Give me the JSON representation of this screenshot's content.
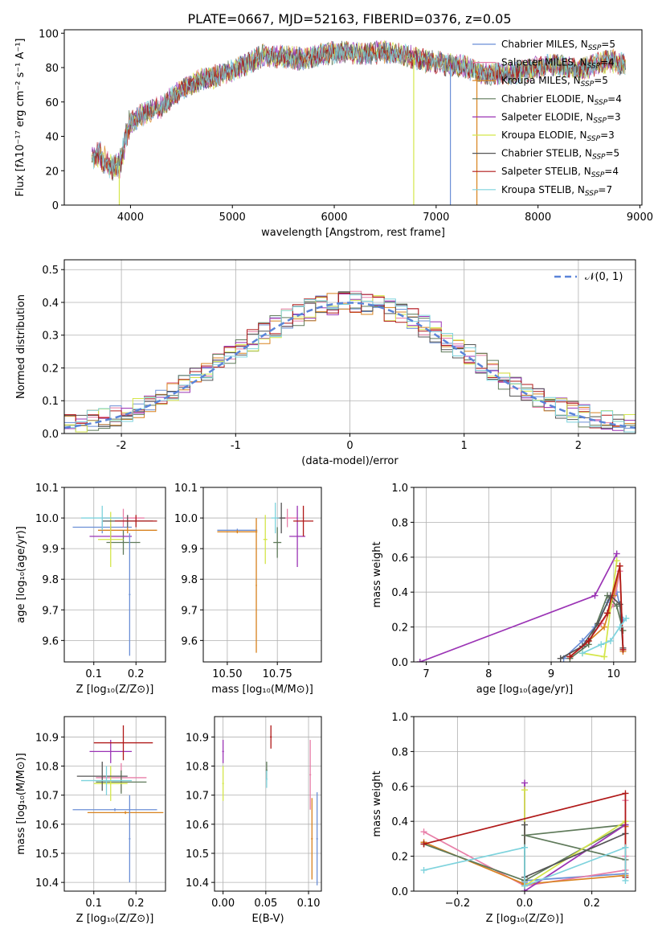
{
  "title": "PLATE=0667, MJD=52163, FIBERID=0376, z=0.05",
  "colors": {
    "Chabrier MILES": "#6b8fd6",
    "Salpeter MILES": "#e87fa8",
    "Kroupa MILES": "#d8821e",
    "Chabrier ELODIE": "#5f7a5a",
    "Salpeter ELODIE": "#9b34b5",
    "Kroupa ELODIE": "#d4e64a",
    "Chabrier STELIB": "#555555",
    "Salpeter STELIB": "#b01818",
    "Kroupa STELIB": "#7ed3dd",
    "normal": "#5b84d8"
  },
  "chart_data": [
    {
      "type": "line",
      "panel": "spectrum",
      "xlabel": "wavelength [Angstrom, rest frame]",
      "ylabel": "Flux [fλ10⁻¹⁷ erg cm⁻² s⁻¹ A⁻¹]",
      "xlim": [
        3350,
        9020
      ],
      "ylim": [
        0,
        102
      ],
      "xticks": [
        "4000",
        "5000",
        "6000",
        "7000",
        "8000",
        "9000"
      ],
      "yticks": [
        "0",
        "20",
        "40",
        "60",
        "80",
        "100"
      ],
      "grid": false,
      "legend_position": "top-right",
      "legend": [
        {
          "model": "Chabrier MILES",
          "label": "Chabrier MILES, N",
          "sub": "SSP",
          "rest": "=5"
        },
        {
          "model": "Salpeter MILES",
          "label": "Salpeter MILES, N",
          "sub": "SSP",
          "rest": "=4"
        },
        {
          "model": "Kroupa MILES",
          "label": "Kroupa MILES, N",
          "sub": "SSP",
          "rest": "=5"
        },
        {
          "model": "Chabrier ELODIE",
          "label": "Chabrier ELODIE, N",
          "sub": "SSP",
          "rest": "=4"
        },
        {
          "model": "Salpeter ELODIE",
          "label": "Salpeter ELODIE, N",
          "sub": "SSP",
          "rest": "=3"
        },
        {
          "model": "Kroupa ELODIE",
          "label": "Kroupa ELODIE, N",
          "sub": "SSP",
          "rest": "=3"
        },
        {
          "model": "Chabrier STELIB",
          "label": "Chabrier STELIB, N",
          "sub": "SSP",
          "rest": "=5"
        },
        {
          "model": "Salpeter STELIB",
          "label": "Salpeter STELIB, N",
          "sub": "SSP",
          "rest": "=4"
        },
        {
          "model": "Kroupa STELIB",
          "label": "Kroupa STELIB, N",
          "sub": "SSP",
          "rest": "=7"
        }
      ],
      "continuum": {
        "wavelength": [
          3600,
          3700,
          3800,
          3900,
          3950,
          4000,
          4100,
          4200,
          4300,
          4400,
          4500,
          4700,
          4900,
          5100,
          5300,
          5500,
          5700,
          5900,
          6100,
          6300,
          6500,
          6700,
          6900,
          7100,
          7300,
          7500,
          7800,
          8100,
          8400,
          8700,
          8850
        ],
        "flux": [
          27,
          29,
          22,
          23,
          40,
          48,
          52,
          55,
          57,
          62,
          67,
          73,
          76,
          81,
          87,
          86,
          85,
          88,
          89,
          88,
          89,
          87,
          84,
          82,
          80,
          76,
          77,
          82,
          79,
          84,
          82
        ]
      },
      "drops": [
        {
          "model": "Kroupa ELODIE",
          "from": 6780,
          "to": 6790
        },
        {
          "model": "Kroupa ELODIE",
          "from": 3890,
          "to": 3895
        },
        {
          "model": "Kroupa MILES",
          "from": 7400,
          "to": 7410
        },
        {
          "model": "Chabrier MILES",
          "from": 7140,
          "to": 7150
        }
      ]
    },
    {
      "type": "line",
      "panel": "residuals",
      "xlabel": "(data-model)/error",
      "ylabel": "Normed distribution",
      "xlim": [
        -2.5,
        2.5
      ],
      "ylim": [
        0,
        0.53
      ],
      "xticks": [
        "-2",
        "-1",
        "0",
        "1",
        "2"
      ],
      "yticks": [
        "0.0",
        "0.1",
        "0.2",
        "0.3",
        "0.4",
        "0.5"
      ],
      "grid": true,
      "legend_position": "top-right",
      "normal_label": "𝒩(0, 1)",
      "bin_edges_range": [
        -2.5,
        2.5
      ],
      "bin_width": 0.1
    },
    {
      "type": "scatter",
      "panel": "age_vs_Z",
      "xlabel": "Z [log₁₀(Z/Z⊙)]",
      "ylabel": "age  [log₁₀(age/yr)]",
      "xlim": [
        0.03,
        0.27
      ],
      "ylim": [
        9.53,
        10.1
      ],
      "xticks": [
        "0.1",
        "0.2"
      ],
      "yticks": [
        "9.6",
        "9.7",
        "9.8",
        "9.9",
        "10.0",
        "10.1"
      ],
      "grid": true,
      "points": [
        {
          "model": "Chabrier MILES",
          "x": 0.12,
          "xerr": 0.07,
          "y": 9.97,
          "yerr": 0.02
        },
        {
          "model": "Salpeter MILES",
          "x": 0.17,
          "xerr": 0.05,
          "y": 10.0,
          "yerr": 0.03
        },
        {
          "model": "Kroupa MILES",
          "x": 0.18,
          "xerr": 0.07,
          "y": 9.96,
          "yerr": 0.01
        },
        {
          "model": "Chabrier ELODIE",
          "x": 0.17,
          "xerr": 0.04,
          "y": 9.92,
          "yerr": 0.04
        },
        {
          "model": "Salpeter ELODIE",
          "x": 0.14,
          "xerr": 0.05,
          "y": 9.94,
          "yerr": 0.04
        },
        {
          "model": "Kroupa ELODIE",
          "x": 0.14,
          "xerr": 0.03,
          "y": 9.93,
          "yerr": 0.09
        },
        {
          "model": "Chabrier STELIB",
          "x": 0.18,
          "xerr": 0.06,
          "y": 9.99,
          "yerr": 0.02
        },
        {
          "model": "Salpeter STELIB",
          "x": 0.2,
          "xerr": 0.05,
          "y": 9.99,
          "yerr": 0.02
        },
        {
          "model": "Kroupa STELIB",
          "x": 0.12,
          "xerr": 0.05,
          "y": 10.0,
          "yerr": 0.04
        },
        {
          "model": "Chabrier MILES",
          "x": 0.185,
          "xerr": 0.002,
          "y": 9.75,
          "yerr": 0.2
        }
      ]
    },
    {
      "type": "scatter",
      "panel": "age_vs_mass",
      "xlabel": "mass [log₁₀(M/M⊙)]",
      "ylabel": "",
      "xlim": [
        10.38,
        10.97
      ],
      "ylim": [
        9.53,
        10.1
      ],
      "xticks": [
        "10.50",
        "10.75"
      ],
      "yticks": [
        "9.6",
        "9.7",
        "9.8",
        "9.9",
        "10.0",
        "10.1"
      ],
      "grid": true,
      "points": [
        {
          "model": "Chabrier MILES",
          "x": 10.55,
          "xerr": 0.1,
          "y": 9.96,
          "yerr": 0.005
        },
        {
          "model": "Kroupa MILES",
          "x": 10.55,
          "xerr": 0.1,
          "y": 9.955,
          "yerr": 0.005
        },
        {
          "model": "Salpeter MILES",
          "x": 10.8,
          "xerr": 0.05,
          "y": 10.0,
          "yerr": 0.03
        },
        {
          "model": "Chabrier ELODIE",
          "x": 10.75,
          "xerr": 0.02,
          "y": 9.92,
          "yerr": 0.05
        },
        {
          "model": "Salpeter ELODIE",
          "x": 10.85,
          "xerr": 0.04,
          "y": 9.94,
          "yerr": 0.1
        },
        {
          "model": "Kroupa ELODIE",
          "x": 10.69,
          "xerr": 0.01,
          "y": 9.93,
          "yerr": 0.08
        },
        {
          "model": "Chabrier STELIB",
          "x": 10.77,
          "xerr": 0.02,
          "y": 10.0,
          "yerr": 0.05
        },
        {
          "model": "Salpeter STELIB",
          "x": 10.88,
          "xerr": 0.05,
          "y": 9.99,
          "yerr": 0.05
        },
        {
          "model": "Kroupa STELIB",
          "x": 10.74,
          "xerr": 0.02,
          "y": 10.0,
          "yerr": 0.05
        },
        {
          "model": "Kroupa MILES",
          "x": 10.645,
          "xerr": 0.003,
          "y": 9.78,
          "yerr": 0.22
        }
      ]
    },
    {
      "type": "line",
      "panel": "massweight_vs_age",
      "xlabel": "age  [log₁₀(age/yr)]",
      "ylabel": "mass weight",
      "xlim": [
        6.8,
        10.35
      ],
      "ylim": [
        0,
        1.0
      ],
      "xticks": [
        "7",
        "8",
        "9",
        "10"
      ],
      "yticks": [
        "0.0",
        "0.2",
        "0.4",
        "0.6",
        "0.8",
        "1.0"
      ],
      "grid": true,
      "series": [
        {
          "model": "Chabrier MILES",
          "x": [
            9.2,
            9.5,
            9.7,
            9.9,
            10.05,
            10.15
          ],
          "y": [
            0.02,
            0.12,
            0.2,
            0.34,
            0.4,
            0.24
          ]
        },
        {
          "model": "Salpeter MILES",
          "x": [
            9.3,
            9.55,
            9.8,
            10.0,
            10.1,
            10.15
          ],
          "y": [
            0.03,
            0.1,
            0.22,
            0.33,
            0.52,
            0.08
          ]
        },
        {
          "model": "Kroupa MILES",
          "x": [
            9.3,
            9.6,
            9.85,
            10.0,
            10.1,
            10.15
          ],
          "y": [
            0.03,
            0.12,
            0.2,
            0.38,
            0.55,
            0.06
          ]
        },
        {
          "model": "Chabrier ELODIE",
          "x": [
            9.3,
            9.6,
            9.9,
            10.05,
            10.15
          ],
          "y": [
            0.02,
            0.1,
            0.38,
            0.32,
            0.18
          ]
        },
        {
          "model": "Salpeter ELODIE",
          "x": [
            6.9,
            9.7,
            10.05
          ],
          "y": [
            0.0,
            0.38,
            0.62
          ]
        },
        {
          "model": "Kroupa ELODIE",
          "x": [
            9.5,
            9.85,
            10.05
          ],
          "y": [
            0.05,
            0.03,
            0.58
          ]
        },
        {
          "model": "Chabrier STELIB",
          "x": [
            9.15,
            9.5,
            9.75,
            9.95,
            10.1,
            10.15
          ],
          "y": [
            0.02,
            0.09,
            0.22,
            0.38,
            0.33,
            0.08
          ]
        },
        {
          "model": "Salpeter STELIB",
          "x": [
            9.3,
            9.6,
            9.9,
            10.1,
            10.15
          ],
          "y": [
            0.03,
            0.12,
            0.28,
            0.55,
            0.07
          ]
        },
        {
          "model": "Kroupa STELIB",
          "x": [
            9.5,
            9.8,
            9.95,
            10.1,
            10.2
          ],
          "y": [
            0.05,
            0.1,
            0.12,
            0.2,
            0.25
          ]
        }
      ]
    },
    {
      "type": "scatter",
      "panel": "mass_vs_Z",
      "xlabel": "Z [log₁₀(Z/Z⊙)]",
      "ylabel": "mass [log₁₀(M/M⊙)]",
      "xlim": [
        0.03,
        0.27
      ],
      "ylim": [
        10.37,
        10.97
      ],
      "xticks": [
        "0.1",
        "0.2"
      ],
      "yticks": [
        "10.4",
        "10.5",
        "10.6",
        "10.7",
        "10.8",
        "10.9"
      ],
      "grid": true,
      "points": [
        {
          "model": "Chabrier MILES",
          "x": 0.15,
          "xerr": 0.1,
          "y": 10.65,
          "yerr": 0.005
        },
        {
          "model": "Kroupa MILES",
          "x": 0.175,
          "xerr": 0.09,
          "y": 10.64,
          "yerr": 0.005
        },
        {
          "model": "Salpeter MILES",
          "x": 0.165,
          "xerr": 0.06,
          "y": 10.76,
          "yerr": 0.05
        },
        {
          "model": "Chabrier ELODIE",
          "x": 0.165,
          "xerr": 0.06,
          "y": 10.745,
          "yerr": 0.04
        },
        {
          "model": "Salpeter ELODIE",
          "x": 0.14,
          "xerr": 0.05,
          "y": 10.85,
          "yerr": 0.04
        },
        {
          "model": "Kroupa ELODIE",
          "x": 0.14,
          "xerr": 0.04,
          "y": 10.74,
          "yerr": 0.06
        },
        {
          "model": "Chabrier STELIB",
          "x": 0.12,
          "xerr": 0.06,
          "y": 10.765,
          "yerr": 0.05
        },
        {
          "model": "Salpeter STELIB",
          "x": 0.17,
          "xerr": 0.07,
          "y": 10.88,
          "yerr": 0.06
        },
        {
          "model": "Kroupa STELIB",
          "x": 0.13,
          "xerr": 0.06,
          "y": 10.75,
          "yerr": 0.05
        },
        {
          "model": "Chabrier MILES",
          "x": 0.185,
          "xerr": 0.002,
          "y": 10.55,
          "yerr": 0.15
        }
      ]
    },
    {
      "type": "scatter",
      "panel": "mass_vs_EBV",
      "xlabel": "E(B-V)",
      "ylabel": "",
      "xlim": [
        -0.01,
        0.115
      ],
      "ylim": [
        10.37,
        10.97
      ],
      "xticks": [
        "0.00",
        "0.05",
        "0.10"
      ],
      "yticks": [
        "10.4",
        "10.5",
        "10.6",
        "10.7",
        "10.8",
        "10.9"
      ],
      "grid": true,
      "points": [
        {
          "model": "Salpeter ELODIE",
          "x": 0.0,
          "xerr": 0.001,
          "y": 10.85,
          "yerr": 0.04
        },
        {
          "model": "Kroupa ELODIE",
          "x": 0.0,
          "xerr": 0.001,
          "y": 10.74,
          "yerr": 0.06
        },
        {
          "model": "Chabrier ELODIE",
          "x": 0.051,
          "xerr": 0.001,
          "y": 10.785,
          "yerr": 0.03
        },
        {
          "model": "Kroupa STELIB",
          "x": 0.051,
          "xerr": 0.001,
          "y": 10.755,
          "yerr": 0.03
        },
        {
          "model": "Salpeter STELIB",
          "x": 0.056,
          "xerr": 0.001,
          "y": 10.9,
          "yerr": 0.04
        },
        {
          "model": "Salpeter MILES",
          "x": 0.102,
          "xerr": 0.001,
          "y": 10.77,
          "yerr": 0.12
        },
        {
          "model": "Kroupa MILES",
          "x": 0.104,
          "xerr": 0.001,
          "y": 10.55,
          "yerr": 0.14
        },
        {
          "model": "Chabrier MILES",
          "x": 0.11,
          "xerr": 0.001,
          "y": 10.55,
          "yerr": 0.16
        }
      ]
    },
    {
      "type": "line",
      "panel": "massweight_vs_Z",
      "xlabel": "Z [log₁₀(Z/Z⊙)]",
      "ylabel": "mass weight",
      "xlim": [
        -0.33,
        0.33
      ],
      "ylim": [
        0,
        1.0
      ],
      "xticks": [
        "−0.2",
        "0.0",
        "0.2"
      ],
      "yticks": [
        "0.0",
        "0.2",
        "0.4",
        "0.6",
        "0.8",
        "1.0"
      ],
      "grid": true,
      "series": [
        {
          "model": "Chabrier MILES",
          "x": [
            0.0,
            0.0,
            0.3,
            0.3
          ],
          "y": [
            0.05,
            0.06,
            0.1,
            0.38
          ]
        },
        {
          "model": "Salpeter MILES",
          "x": [
            -0.3,
            0.0,
            0.3,
            0.3,
            0.3
          ],
          "y": [
            0.34,
            0.03,
            0.12,
            0.2,
            0.52
          ]
        },
        {
          "model": "Kroupa MILES",
          "x": [
            -0.3,
            0.0,
            0.3,
            0.3
          ],
          "y": [
            0.28,
            0.04,
            0.09,
            0.37
          ]
        },
        {
          "model": "Chabrier ELODIE",
          "x": [
            -0.3,
            0.0,
            0.3,
            0.0,
            0.3
          ],
          "y": [
            0.27,
            0.06,
            0.38,
            0.32,
            0.18
          ]
        },
        {
          "model": "Salpeter ELODIE",
          "x": [
            0.0,
            0.0,
            0.3
          ],
          "y": [
            0.62,
            0.0,
            0.38
          ]
        },
        {
          "model": "Kroupa ELODIE",
          "x": [
            0.0,
            0.0,
            0.3
          ],
          "y": [
            0.58,
            0.03,
            0.4
          ]
        },
        {
          "model": "Chabrier STELIB",
          "x": [
            0.0,
            0.0,
            0.3
          ],
          "y": [
            0.38,
            0.08,
            0.33
          ]
        },
        {
          "model": "Salpeter STELIB",
          "x": [
            -0.3,
            0.3,
            0.3
          ],
          "y": [
            0.27,
            0.56,
            0.08
          ]
        },
        {
          "model": "Kroupa STELIB",
          "x": [
            -0.3,
            0.0,
            0.0,
            0.3,
            0.3
          ],
          "y": [
            0.12,
            0.25,
            0.03,
            0.25,
            0.06
          ]
        }
      ]
    }
  ]
}
